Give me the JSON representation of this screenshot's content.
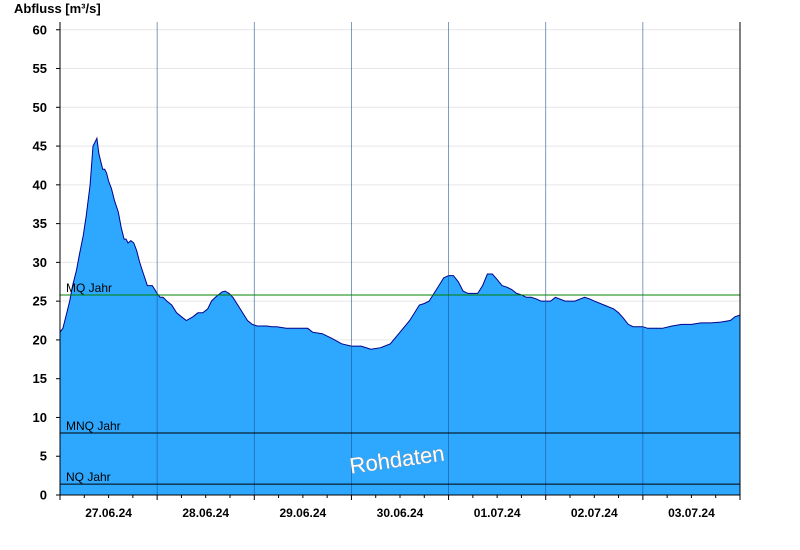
{
  "chart_data": {
    "type": "area",
    "ylabel": "Abfluss [m³/s]",
    "ylim": [
      0,
      61
    ],
    "yticks": [
      0,
      5,
      10,
      15,
      20,
      25,
      30,
      35,
      40,
      45,
      50,
      55,
      60
    ],
    "xlim": [
      0,
      7
    ],
    "x_unit": "days from 27.06.24 00:00",
    "xtick_labels": [
      "27.06.24",
      "28.06.24",
      "29.06.24",
      "30.06.24",
      "01.07.24",
      "02.07.24",
      "03.07.24"
    ],
    "grid": true,
    "series": [
      {
        "color": "#2ea8ff",
        "line_color": "#00008b",
        "x": [
          0.0,
          0.03,
          0.06,
          0.1,
          0.13,
          0.17,
          0.2,
          0.24,
          0.27,
          0.31,
          0.34,
          0.38,
          0.4,
          0.42,
          0.44,
          0.46,
          0.48,
          0.5,
          0.53,
          0.56,
          0.6,
          0.63,
          0.66,
          0.68,
          0.7,
          0.73,
          0.76,
          0.79,
          0.82,
          0.86,
          0.9,
          0.95,
          1.0,
          1.03,
          1.06,
          1.1,
          1.15,
          1.2,
          1.25,
          1.3,
          1.37,
          1.42,
          1.47,
          1.52,
          1.56,
          1.6,
          1.63,
          1.67,
          1.7,
          1.74,
          1.78,
          1.83,
          1.88,
          1.93,
          1.98,
          2.03,
          2.08,
          2.13,
          2.18,
          2.23,
          2.28,
          2.33,
          2.38,
          2.43,
          2.48,
          2.55,
          2.6,
          2.7,
          2.8,
          2.9,
          3.0,
          3.05,
          3.1,
          3.2,
          3.3,
          3.4,
          3.5,
          3.6,
          3.7,
          3.75,
          3.8,
          3.85,
          3.9,
          3.95,
          4.0,
          4.05,
          4.1,
          4.15,
          4.2,
          4.3,
          4.35,
          4.4,
          4.45,
          4.5,
          4.55,
          4.6,
          4.65,
          4.7,
          4.75,
          4.8,
          4.85,
          4.9,
          4.95,
          5.0,
          5.05,
          5.1,
          5.2,
          5.3,
          5.4,
          5.45,
          5.5,
          5.6,
          5.7,
          5.75,
          5.8,
          5.85,
          5.9,
          5.95,
          6.0,
          6.05,
          6.1,
          6.2,
          6.3,
          6.4,
          6.5,
          6.6,
          6.7,
          6.8,
          6.9,
          6.95,
          7.0
        ],
        "y": [
          21.0,
          21.5,
          23.0,
          25.0,
          27.0,
          29.0,
          31.0,
          33.5,
          36.0,
          40.0,
          45.0,
          46.0,
          44.0,
          43.0,
          42.0,
          42.0,
          41.5,
          40.5,
          39.5,
          38.0,
          36.5,
          34.5,
          33.0,
          33.0,
          32.5,
          32.8,
          32.5,
          31.5,
          30.0,
          28.5,
          27.0,
          27.0,
          26.0,
          25.5,
          25.5,
          25.0,
          24.5,
          23.5,
          23.0,
          22.5,
          23.0,
          23.5,
          23.5,
          24.0,
          25.0,
          25.5,
          25.8,
          26.2,
          26.3,
          26.0,
          25.5,
          24.5,
          23.5,
          22.5,
          22.0,
          21.8,
          21.8,
          21.8,
          21.7,
          21.7,
          21.6,
          21.5,
          21.5,
          21.5,
          21.5,
          21.5,
          21.0,
          20.8,
          20.2,
          19.5,
          19.2,
          19.2,
          19.2,
          18.8,
          19.0,
          19.5,
          21.0,
          22.5,
          24.5,
          24.7,
          25.0,
          26.0,
          27.0,
          28.0,
          28.3,
          28.3,
          27.5,
          26.3,
          26.0,
          26.0,
          27.0,
          28.5,
          28.5,
          27.8,
          27.0,
          26.8,
          26.5,
          26.0,
          25.8,
          25.5,
          25.5,
          25.3,
          25.0,
          25.0,
          25.0,
          25.5,
          25.0,
          25.0,
          25.5,
          25.3,
          25.0,
          24.5,
          24.0,
          23.5,
          22.8,
          22.0,
          21.7,
          21.7,
          21.7,
          21.5,
          21.5,
          21.5,
          21.8,
          22.0,
          22.0,
          22.2,
          22.2,
          22.3,
          22.5,
          23.0,
          23.2
        ]
      }
    ],
    "reference_lines": [
      {
        "label": "MQ Jahr",
        "value": 25.8,
        "color": "#008000"
      },
      {
        "label": "MNQ Jahr",
        "value": 8.0,
        "color": "#000000"
      },
      {
        "label": "NQ Jahr",
        "value": 1.4,
        "color": "#000000"
      }
    ],
    "annotations": [
      "Rohdaten"
    ]
  }
}
